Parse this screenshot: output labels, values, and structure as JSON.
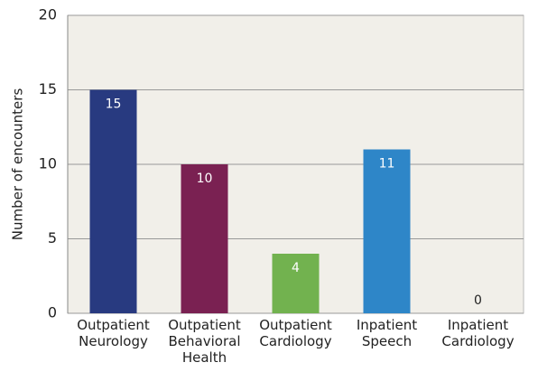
{
  "chart_data": {
    "type": "bar",
    "y_label": "Number of encounters",
    "categories": [
      "Outpatient Neurology",
      "Outpatient Behavioral Health",
      "Outpatient Cardiology",
      "Inpatient Speech",
      "Inpatient Cardiology"
    ],
    "values": [
      15,
      10,
      4,
      11,
      0
    ],
    "colors": [
      "#283a80",
      "#7a2152",
      "#72b24f",
      "#2e86c8",
      "#2e86c8"
    ],
    "ylim": [
      0,
      20
    ],
    "yticks": [
      0,
      5,
      10,
      15,
      20
    ],
    "grid": true
  }
}
